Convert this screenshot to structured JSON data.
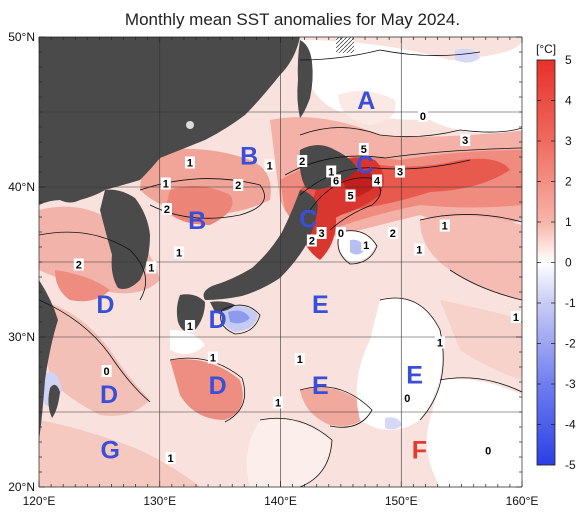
{
  "title": "Monthly mean SST anomalies for May 2024.",
  "map": {
    "lon_range": [
      120,
      160
    ],
    "lat_range": [
      20,
      50
    ],
    "lon_ticks": [
      "120°E",
      "130°E",
      "140°E",
      "150°E",
      "160°E"
    ],
    "lat_ticks": [
      "50°N",
      "40°N",
      "30°N",
      "20°N"
    ],
    "land_color": "#4a4a4a",
    "regions": [
      {
        "label": "A",
        "lon": 147.1,
        "lat": 45.8,
        "color": "#3a4fd8"
      },
      {
        "label": "B",
        "lon": 137.4,
        "lat": 42.1,
        "color": "#3a4fd8"
      },
      {
        "label": "B",
        "lon": 133.1,
        "lat": 37.8,
        "color": "#3a4fd8"
      },
      {
        "label": "C",
        "lon": 147.0,
        "lat": 41.5,
        "color": "#3a4fd8"
      },
      {
        "label": "C",
        "lon": 142.3,
        "lat": 37.9,
        "color": "#3a4fd8"
      },
      {
        "label": "D",
        "lon": 125.5,
        "lat": 32.2,
        "color": "#3a4fd8"
      },
      {
        "label": "D",
        "lon": 134.8,
        "lat": 31.2,
        "color": "#3a4fd8"
      },
      {
        "label": "D",
        "lon": 134.8,
        "lat": 26.8,
        "color": "#3a4fd8"
      },
      {
        "label": "D",
        "lon": 125.8,
        "lat": 26.2,
        "color": "#3a4fd8"
      },
      {
        "label": "E",
        "lon": 143.3,
        "lat": 32.2,
        "color": "#3a4fd8"
      },
      {
        "label": "E",
        "lon": 143.3,
        "lat": 26.8,
        "color": "#3a4fd8"
      },
      {
        "label": "E",
        "lon": 151.1,
        "lat": 27.5,
        "color": "#3a4fd8"
      },
      {
        "label": "F",
        "lon": 151.5,
        "lat": 22.5,
        "color": "#e23a2e"
      },
      {
        "label": "G",
        "lon": 125.9,
        "lat": 22.5,
        "color": "#3a4fd8"
      }
    ],
    "contour_labels": [
      {
        "text": "0",
        "lon": 151.8,
        "lat": 44.6
      },
      {
        "text": "3",
        "lon": 155.3,
        "lat": 43.0
      },
      {
        "text": "5",
        "lon": 146.9,
        "lat": 42.4
      },
      {
        "text": "3",
        "lon": 149.9,
        "lat": 40.9
      },
      {
        "text": "6",
        "lon": 144.6,
        "lat": 40.3
      },
      {
        "text": "4",
        "lon": 148.0,
        "lat": 40.3
      },
      {
        "text": "5",
        "lon": 145.8,
        "lat": 39.3
      },
      {
        "text": "2",
        "lon": 141.8,
        "lat": 41.6
      },
      {
        "text": "1",
        "lon": 144.2,
        "lat": 40.9
      },
      {
        "text": "3",
        "lon": 143.4,
        "lat": 36.8
      },
      {
        "text": "0",
        "lon": 145.0,
        "lat": 36.8
      },
      {
        "text": "1",
        "lon": 147.1,
        "lat": 36.0
      },
      {
        "text": "2",
        "lon": 149.3,
        "lat": 36.8
      },
      {
        "text": "1",
        "lon": 153.6,
        "lat": 37.3
      },
      {
        "text": "1",
        "lon": 151.5,
        "lat": 35.7
      },
      {
        "text": "2",
        "lon": 142.6,
        "lat": 36.3
      },
      {
        "text": "1",
        "lon": 139.1,
        "lat": 41.3
      },
      {
        "text": "1",
        "lon": 132.5,
        "lat": 41.5
      },
      {
        "text": "2",
        "lon": 136.5,
        "lat": 40.0
      },
      {
        "text": "1",
        "lon": 130.5,
        "lat": 40.1
      },
      {
        "text": "2",
        "lon": 130.6,
        "lat": 38.4
      },
      {
        "text": "1",
        "lon": 131.6,
        "lat": 35.5
      },
      {
        "text": "2",
        "lon": 123.3,
        "lat": 34.7
      },
      {
        "text": "1",
        "lon": 129.3,
        "lat": 34.5
      },
      {
        "text": "1",
        "lon": 132.5,
        "lat": 30.6
      },
      {
        "text": "1",
        "lon": 134.4,
        "lat": 28.5
      },
      {
        "text": "0",
        "lon": 125.6,
        "lat": 27.6
      },
      {
        "text": "1",
        "lon": 141.6,
        "lat": 28.4
      },
      {
        "text": "1",
        "lon": 139.8,
        "lat": 25.5
      },
      {
        "text": "1",
        "lon": 153.2,
        "lat": 29.5
      },
      {
        "text": "0",
        "lon": 150.5,
        "lat": 25.8
      },
      {
        "text": "1",
        "lon": 159.5,
        "lat": 31.2
      },
      {
        "text": "0",
        "lon": 157.2,
        "lat": 22.3
      },
      {
        "text": "1",
        "lon": 130.9,
        "lat": 21.8
      }
    ]
  },
  "colorbar": {
    "unit": "[°C]",
    "ticks": [
      "5",
      "4",
      "3",
      "2",
      "1",
      "0",
      "-1",
      "-2",
      "-3",
      "-4",
      "-5"
    ],
    "range": [
      -5,
      5
    ],
    "colors": {
      "max": "#e8302a",
      "zero": "#ffffff",
      "min": "#2b3fe6"
    }
  }
}
